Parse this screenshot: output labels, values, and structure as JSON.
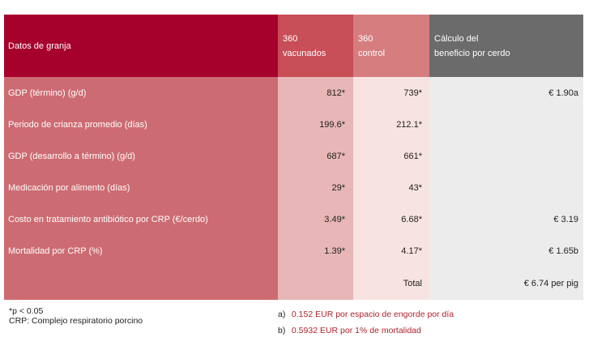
{
  "header": {
    "col1": "Datos de granja",
    "col2_line1": "360",
    "col2_line2": "vacunados",
    "col3_line1": "360",
    "col3_line2": "control",
    "col4_line1": "Cálculo del",
    "col4_line2": "beneficio por cerdo"
  },
  "rows": [
    {
      "label": "GDP (término) (g/d)",
      "vac": "812*",
      "ctrl": "739*",
      "benefit": "€ 1.90a"
    },
    {
      "label": "Periodo de crianza promedio (días)",
      "vac": "199.6*",
      "ctrl": "212.1*",
      "benefit": ""
    },
    {
      "label": "GDP (desarrollo a término) (g/d)",
      "vac": "687*",
      "ctrl": "661*",
      "benefit": ""
    },
    {
      "label": "Medicación por alimento (días)",
      "vac": "29*",
      "ctrl": "43*",
      "benefit": ""
    },
    {
      "label": "Costo en tratamiento antibiótico por CRP (€/cerdo)",
      "vac": "3.49*",
      "ctrl": "6.68*",
      "benefit": "€ 3.19"
    },
    {
      "label": "Mortalidad por CRP (%)",
      "vac": "1.39*",
      "ctrl": "4.17*",
      "benefit": "€ 1.65b"
    }
  ],
  "total": {
    "label": "Total",
    "value": "€ 6.74 per pig"
  },
  "footnotes": {
    "left_line1": "*p < 0.05",
    "left_line2": "CRP: Complejo respiratorio porcino",
    "a_label": "a)",
    "a_text": "0.152 EUR por espacio de engorde por día",
    "b_label": "b)",
    "b_text": "0.5932 EUR por 1% de mortalidad"
  }
}
